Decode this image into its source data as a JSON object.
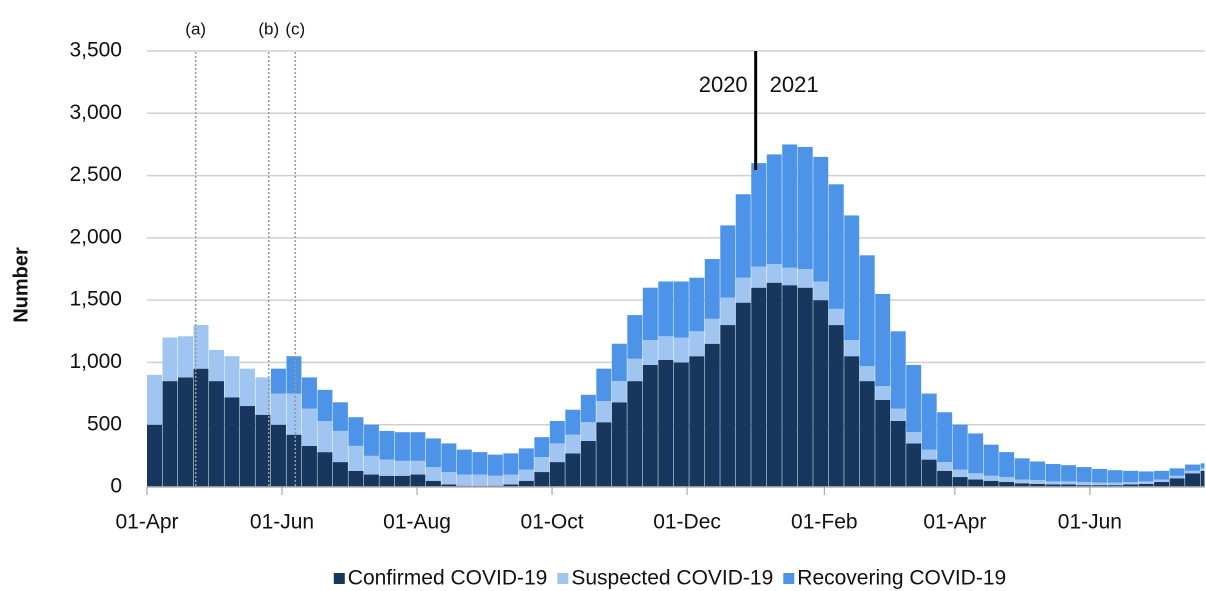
{
  "chart_data": {
    "type": "stacked-bar",
    "y_label": "Number",
    "xlim": [
      0,
      478
    ],
    "ylim": [
      0,
      3500
    ],
    "xticks": [
      {
        "value": 0,
        "label": "01-Apr"
      },
      {
        "value": 61,
        "label": "01-Jun"
      },
      {
        "value": 122,
        "label": "01-Aug"
      },
      {
        "value": 183,
        "label": "01-Oct"
      },
      {
        "value": 244,
        "label": "01-Dec"
      },
      {
        "value": 306,
        "label": "01-Feb"
      },
      {
        "value": 365,
        "label": "01-Apr"
      },
      {
        "value": 426,
        "label": "01-Jun"
      }
    ],
    "yticks": [
      0,
      500,
      {
        "value": 1000,
        "label": "1,000"
      },
      {
        "value": 1500,
        "label": "1,500"
      },
      {
        "value": 2000,
        "label": "2,000"
      },
      {
        "value": 2500,
        "label": "2,500"
      },
      {
        "value": 3000,
        "label": "3,000"
      },
      {
        "value": 3500,
        "label": "3,500"
      }
    ],
    "grid": true,
    "legend": "bottom",
    "annotations": [
      {
        "text": "(a)",
        "x": 22
      },
      {
        "text": "(b)",
        "x": 55
      },
      {
        "text": "(c)",
        "x": 67
      }
    ],
    "divider": {
      "x": 275,
      "labels": [
        "2020",
        "2021"
      ]
    },
    "x": [
      0,
      7,
      14,
      21,
      28,
      35,
      42,
      49,
      56,
      63,
      70,
      77,
      84,
      91,
      98,
      105,
      112,
      119,
      126,
      133,
      140,
      147,
      154,
      161,
      168,
      175,
      182,
      189,
      196,
      203,
      210,
      217,
      224,
      231,
      238,
      245,
      252,
      259,
      266,
      273,
      280,
      287,
      294,
      301,
      308,
      315,
      322,
      329,
      336,
      343,
      350,
      357,
      364,
      371,
      378,
      385,
      392,
      399,
      406,
      413,
      420,
      427,
      434,
      441,
      448,
      455,
      462,
      469,
      476
    ],
    "series": [
      {
        "name": "Confirmed COVID-19",
        "color": "#17375e",
        "values": [
          500,
          850,
          880,
          950,
          850,
          720,
          650,
          580,
          500,
          420,
          330,
          280,
          200,
          130,
          100,
          90,
          90,
          100,
          50,
          20,
          10,
          10,
          10,
          20,
          50,
          120,
          200,
          270,
          370,
          520,
          680,
          850,
          980,
          1020,
          1000,
          1050,
          1150,
          1300,
          1480,
          1600,
          1640,
          1620,
          1600,
          1500,
          1300,
          1050,
          850,
          700,
          530,
          350,
          220,
          130,
          80,
          60,
          50,
          40,
          30,
          25,
          20,
          20,
          15,
          15,
          15,
          20,
          25,
          40,
          70,
          110,
          130
        ]
      },
      {
        "name": "Suspected COVID-19",
        "color": "#9fc5f0",
        "values": [
          400,
          350,
          330,
          350,
          250,
          330,
          300,
          300,
          250,
          330,
          300,
          250,
          250,
          200,
          150,
          130,
          120,
          110,
          110,
          100,
          90,
          90,
          80,
          80,
          90,
          120,
          150,
          150,
          150,
          170,
          170,
          180,
          200,
          190,
          200,
          200,
          200,
          220,
          200,
          170,
          150,
          140,
          150,
          150,
          130,
          130,
          120,
          110,
          100,
          90,
          80,
          70,
          60,
          50,
          40,
          40,
          30,
          30,
          25,
          25,
          25,
          20,
          20,
          20,
          20,
          20,
          20,
          20,
          20
        ]
      },
      {
        "name": "Recovering COVID-19",
        "color": "#4d94e8",
        "values": [
          0,
          0,
          0,
          0,
          0,
          0,
          0,
          0,
          200,
          300,
          250,
          250,
          230,
          230,
          250,
          230,
          230,
          230,
          230,
          230,
          200,
          180,
          170,
          170,
          170,
          160,
          180,
          200,
          220,
          260,
          300,
          350,
          420,
          440,
          450,
          430,
          480,
          580,
          670,
          830,
          880,
          990,
          980,
          1000,
          1000,
          1000,
          890,
          740,
          620,
          540,
          450,
          400,
          360,
          320,
          250,
          200,
          170,
          150,
          140,
          130,
          120,
          110,
          100,
          90,
          80,
          70,
          60,
          50,
          40
        ]
      }
    ]
  }
}
